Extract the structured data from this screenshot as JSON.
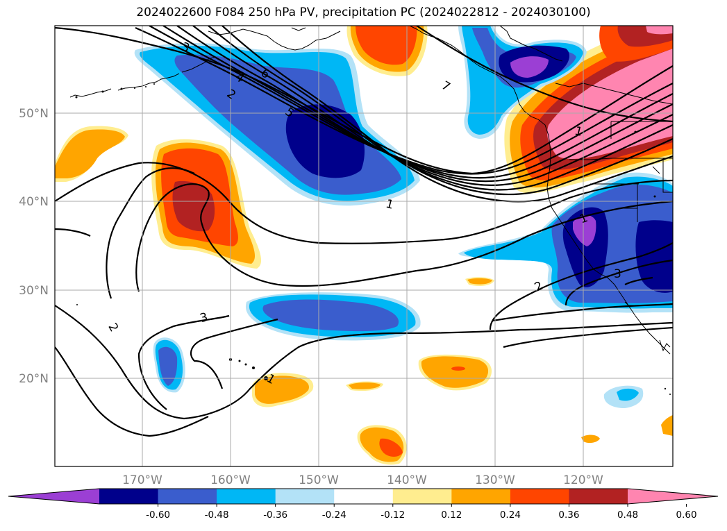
{
  "title": "2024022600 F084 250 hPa PV, precipitation PC (2024022812 - 2024030100)",
  "lat_labels": [
    {
      "value": 50,
      "text": "50°N"
    },
    {
      "value": 40,
      "text": "40°N"
    },
    {
      "value": 30,
      "text": "30°N"
    },
    {
      "value": 20,
      "text": "20°N"
    }
  ],
  "lon_labels": [
    {
      "value": -170,
      "text": "170°W"
    },
    {
      "value": -160,
      "text": "160°W"
    },
    {
      "value": -150,
      "text": "150°W"
    },
    {
      "value": -140,
      "text": "140°W"
    },
    {
      "value": -130,
      "text": "130°W"
    },
    {
      "value": -120,
      "text": "120°W"
    }
  ],
  "contour_labels": [
    "3",
    "4",
    "2",
    "6",
    "5",
    "7",
    "1",
    "1",
    "3",
    "2",
    "2",
    "3",
    "1",
    "1"
  ],
  "colorbar": {
    "colors": [
      "#9b3fd4",
      "#00008b",
      "#3a5dcd",
      "#00b7f5",
      "#b3e2f7",
      "#ffffff",
      "#ffed8f",
      "#ffa500",
      "#ff4500",
      "#b22222",
      "#ff85b0"
    ],
    "ticks": [
      "-0.60",
      "-0.48",
      "-0.36",
      "-0.24",
      "-0.12",
      "0.12",
      "0.24",
      "0.36",
      "0.48",
      "0.60"
    ]
  }
}
